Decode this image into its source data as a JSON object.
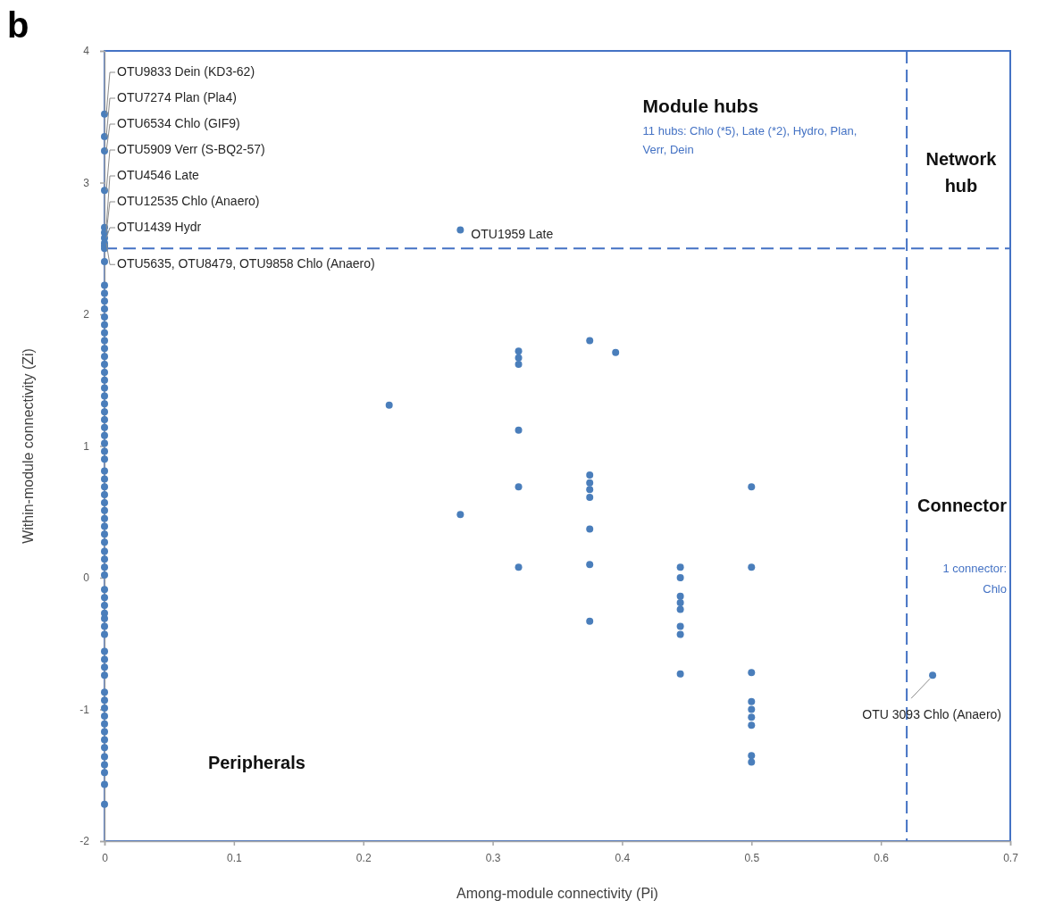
{
  "chart_data": {
    "type": "scatter",
    "xlabel": "Among-module connectivity (Pi)",
    "ylabel": "Within-module connectivity (Zi)",
    "xlim": [
      0,
      0.7
    ],
    "xticks": [
      0,
      0.1,
      0.2,
      0.3,
      0.4,
      0.5,
      0.6,
      0.7
    ],
    "ylim": [
      -2,
      4
    ],
    "yticks": [
      -2,
      -1,
      0,
      1,
      2,
      3,
      4
    ],
    "marker": "circle",
    "series": [
      {
        "color": "#4a7ebb",
        "x": [
          0,
          0,
          0,
          0,
          0,
          0,
          0,
          0,
          0,
          0,
          0,
          0,
          0,
          0,
          0,
          0,
          0,
          0,
          0,
          0,
          0,
          0,
          0,
          0,
          0,
          0,
          0,
          0,
          0,
          0,
          0,
          0,
          0,
          0,
          0,
          0,
          0,
          0,
          0,
          0,
          0,
          0,
          0,
          0,
          0,
          0,
          0,
          0,
          0,
          0,
          0,
          0,
          0,
          0,
          0,
          0,
          0,
          0,
          0,
          0,
          0,
          0,
          0,
          0,
          0,
          0,
          0,
          0,
          0,
          0,
          0,
          0,
          0.22,
          0.275,
          0.275,
          0.32,
          0.32,
          0.32,
          0.32,
          0.32,
          0.32,
          0.375,
          0.375,
          0.375,
          0.375,
          0.375,
          0.375,
          0.375,
          0.375,
          0.395,
          0.445,
          0.445,
          0.445,
          0.445,
          0.445,
          0.445,
          0.445,
          0.445,
          0.5,
          0.5,
          0.5,
          0.5,
          0.5,
          0.5,
          0.5,
          0.5,
          0.5,
          0.64
        ],
        "values": [
          3.52,
          3.35,
          3.24,
          2.94,
          2.66,
          2.62,
          2.58,
          2.54,
          2.52,
          2.5,
          2.4,
          2.22,
          2.16,
          2.1,
          2.04,
          1.98,
          1.92,
          1.86,
          1.8,
          1.74,
          1.68,
          1.62,
          1.56,
          1.5,
          1.44,
          1.38,
          1.32,
          1.26,
          1.2,
          1.14,
          1.08,
          1.02,
          0.96,
          0.9,
          0.81,
          0.75,
          0.69,
          0.63,
          0.57,
          0.51,
          0.45,
          0.39,
          0.33,
          0.27,
          0.2,
          0.14,
          0.08,
          0.02,
          -0.09,
          -0.15,
          -0.21,
          -0.27,
          -0.31,
          -0.37,
          -0.43,
          -0.56,
          -0.62,
          -0.68,
          -0.74,
          -0.87,
          -0.93,
          -0.99,
          -1.05,
          -1.11,
          -1.17,
          -1.23,
          -1.29,
          -1.36,
          -1.42,
          -1.48,
          -1.57,
          -1.72,
          1.31,
          2.64,
          0.48,
          1.72,
          1.67,
          1.62,
          1.12,
          0.69,
          0.08,
          1.8,
          0.78,
          0.72,
          0.67,
          0.61,
          0.37,
          0.1,
          -0.33,
          1.71,
          0.08,
          0,
          -0.14,
          -0.19,
          -0.24,
          -0.37,
          -0.43,
          -0.73,
          0.69,
          0.08,
          -0.72,
          -0.94,
          -1,
          -1.06,
          -1.12,
          -1.35,
          -1.4,
          -0.74
        ]
      }
    ],
    "ref_lines": [
      {
        "axis": "y",
        "value": 2.5,
        "color": "#4472c4",
        "line_style": "dashed"
      },
      {
        "axis": "x",
        "value": 0.62,
        "color": "#4472c4",
        "line_style": "dashed"
      }
    ],
    "annotations": [
      "b",
      "Module hubs",
      "11 hubs: Chlo (*5), Late (*2), Hydro, Plan, Verr, Dein",
      "Network hub",
      "Connector",
      "1 connector: Chlo",
      "Peripherals",
      {
        "text": "OTU9833 Dein (KD3-62)",
        "x": 0,
        "y": 3.52
      },
      {
        "text": "OTU7274 Plan (Pla4)",
        "x": 0,
        "y": 3.35
      },
      {
        "text": "OTU6534 Chlo  (GIF9)",
        "x": 0,
        "y": 3.24
      },
      {
        "text": "OTU5909 Verr (S-BQ2-57)",
        "x": 0,
        "y": 2.94
      },
      {
        "text": "OTU4546 Late",
        "x": 0,
        "y": 2.66
      },
      {
        "text": "OTU12535 Chlo (Anaero)",
        "x": 0,
        "y": 2.62
      },
      {
        "text": "OTU1439 Hydr",
        "x": 0,
        "y": 2.58
      },
      {
        "text": "OTU5635, OTU8479, OTU9858 Chlo (Anaero)",
        "x": 0,
        "y": 2.54
      },
      {
        "text": "OTU1959 Late",
        "x": 0.275,
        "y": 2.64
      },
      {
        "text": "OTU 3093 Chlo (Anaero)",
        "x": 0.64,
        "y": -0.74
      }
    ]
  }
}
